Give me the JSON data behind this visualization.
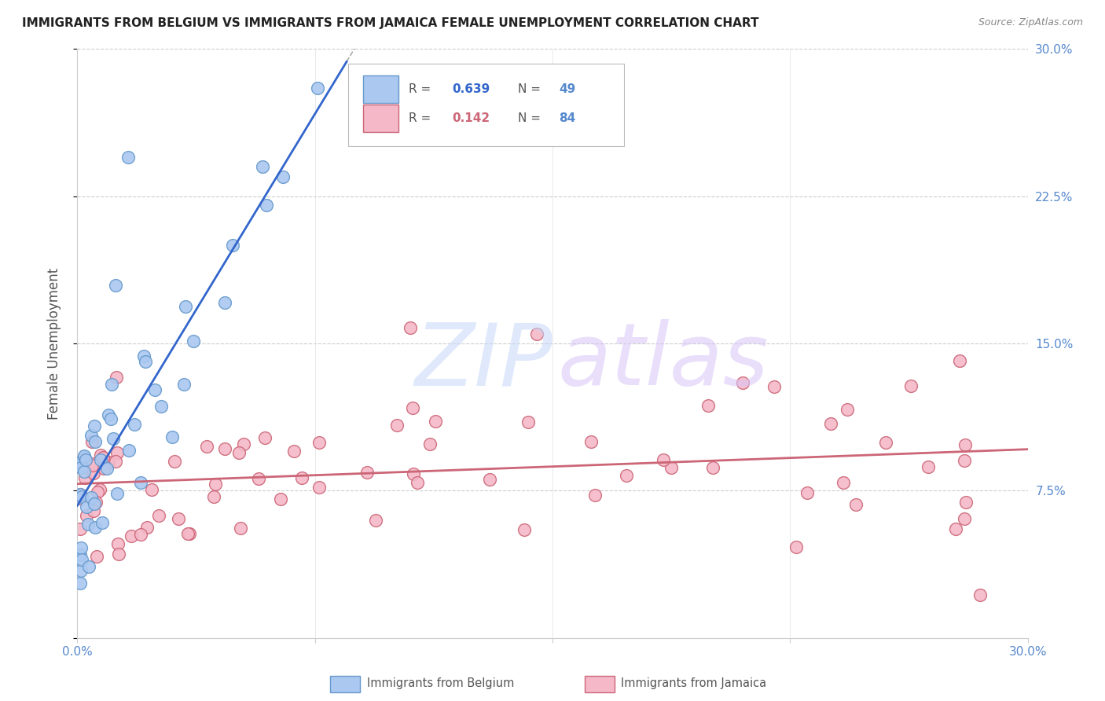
{
  "title": "IMMIGRANTS FROM BELGIUM VS IMMIGRANTS FROM JAMAICA FEMALE UNEMPLOYMENT CORRELATION CHART",
  "source": "Source: ZipAtlas.com",
  "ylabel": "Female Unemployment",
  "xlim": [
    0.0,
    0.3
  ],
  "ylim": [
    0.0,
    0.3
  ],
  "series_belgium": {
    "name": "Immigrants from Belgium",
    "scatter_face": "#aac8f0",
    "scatter_edge": "#6699cc",
    "line_color": "#3366cc",
    "R": 0.639,
    "N": 49
  },
  "series_jamaica": {
    "name": "Immigrants from Jamaica",
    "scatter_face": "#f4b8c8",
    "scatter_edge": "#cc6677",
    "line_color": "#cc6677",
    "R": 0.142,
    "N": 84
  },
  "bg_color": "#ffffff",
  "grid_color": "#cccccc",
  "title_color": "#222222",
  "axis_color": "#5588cc",
  "watermark_zip_color": "#ccddf5",
  "watermark_atlas_color": "#ddc8f5",
  "legend_R_color": "#5588cc",
  "legend_N_color": "#5588cc"
}
